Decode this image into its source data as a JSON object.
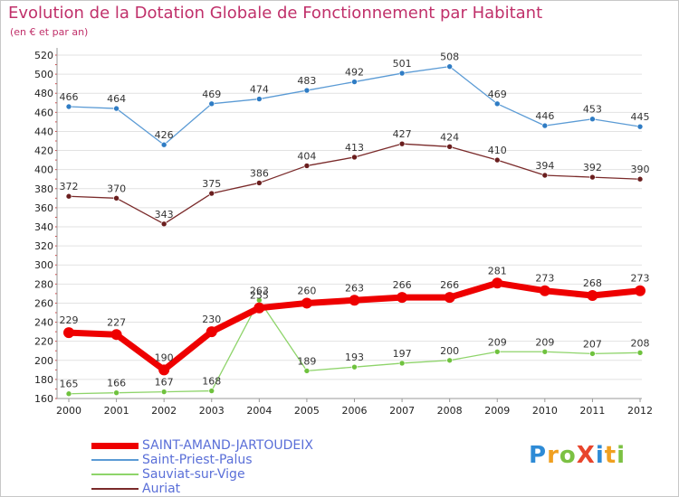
{
  "header": {
    "title": "Evolution de la Dotation Globale de Fonctionnement par Habitant",
    "subtitle": "(en € et par an)"
  },
  "logo": {
    "text": "ProXiti",
    "letters": [
      {
        "ch": "P",
        "color": "#2e8bd6"
      },
      {
        "ch": "r",
        "color": "#f0a020"
      },
      {
        "ch": "o",
        "color": "#7cc143"
      },
      {
        "ch": "X",
        "color": "#e8452c"
      },
      {
        "ch": "i",
        "color": "#2e8bd6"
      },
      {
        "ch": "t",
        "color": "#f0a020"
      },
      {
        "ch": "i",
        "color": "#7cc143"
      }
    ]
  },
  "colors": {
    "axis": "#9a9a9a",
    "grid": "#e2e2e2",
    "title": "#c0306a",
    "legend_text": "#5a6fd8"
  },
  "chart_data": {
    "type": "line",
    "title": "Evolution de la Dotation Globale de Fonctionnement par Habitant",
    "subtitle": "(en € et par an)",
    "xlabel": "",
    "ylabel": "",
    "x": [
      "2000",
      "2001",
      "2002",
      "2003",
      "2004",
      "2005",
      "2006",
      "2007",
      "2008",
      "2009",
      "2010",
      "2011",
      "2012"
    ],
    "yticks": [
      160,
      180,
      200,
      220,
      240,
      260,
      280,
      300,
      320,
      340,
      360,
      380,
      400,
      420,
      440,
      460,
      480,
      500,
      520
    ],
    "ylim": [
      160,
      520
    ],
    "grid": true,
    "legend_position": "bottom-left",
    "series": [
      {
        "name": "SAINT-AMAND-JARTOUDEIX",
        "color": "#ee0000",
        "line_width": 7,
        "marker_radius": 6,
        "marker_fill": "#ee0000",
        "values": [
          229,
          227,
          190,
          230,
          255,
          260,
          263,
          266,
          266,
          281,
          273,
          268,
          273
        ],
        "labels": [
          "229",
          "227",
          "190",
          "230",
          "255",
          "260",
          "263",
          "266",
          "266",
          "281",
          "273",
          "268",
          "273"
        ]
      },
      {
        "name": "Saint-Priest-Palus",
        "color": "#5b9bd5",
        "line_width": 1.3,
        "marker_radius": 3,
        "marker_fill": "#2f7cc4",
        "values": [
          466,
          464,
          426,
          469,
          474,
          483,
          492,
          501,
          508,
          469,
          446,
          453,
          445
        ],
        "labels": [
          "466",
          "464",
          "426",
          "469",
          "474",
          "483",
          "492",
          "501",
          "508",
          "469",
          "446",
          "453",
          "445"
        ]
      },
      {
        "name": "Sauviat-sur-Vige",
        "color": "#8ed46a",
        "line_width": 1.3,
        "marker_radius": 3,
        "marker_fill": "#6fc23e",
        "values": [
          165,
          166,
          167,
          168,
          263,
          189,
          193,
          197,
          200,
          209,
          209,
          207,
          208
        ],
        "labels": [
          "165",
          "166",
          "167",
          "168",
          "263",
          "189",
          "193",
          "197",
          "200",
          "209",
          "209",
          "207",
          "208"
        ]
      },
      {
        "name": "Auriat",
        "color": "#7a2a2a",
        "line_width": 1.3,
        "marker_radius": 3,
        "marker_fill": "#6a1e1e",
        "values": [
          372,
          370,
          343,
          375,
          386,
          404,
          413,
          427,
          424,
          410,
          394,
          392,
          390
        ],
        "labels": [
          "372",
          "370",
          "343",
          "375",
          "386",
          "404",
          "413",
          "427",
          "424",
          "410",
          "394",
          "392",
          "390"
        ]
      }
    ]
  }
}
